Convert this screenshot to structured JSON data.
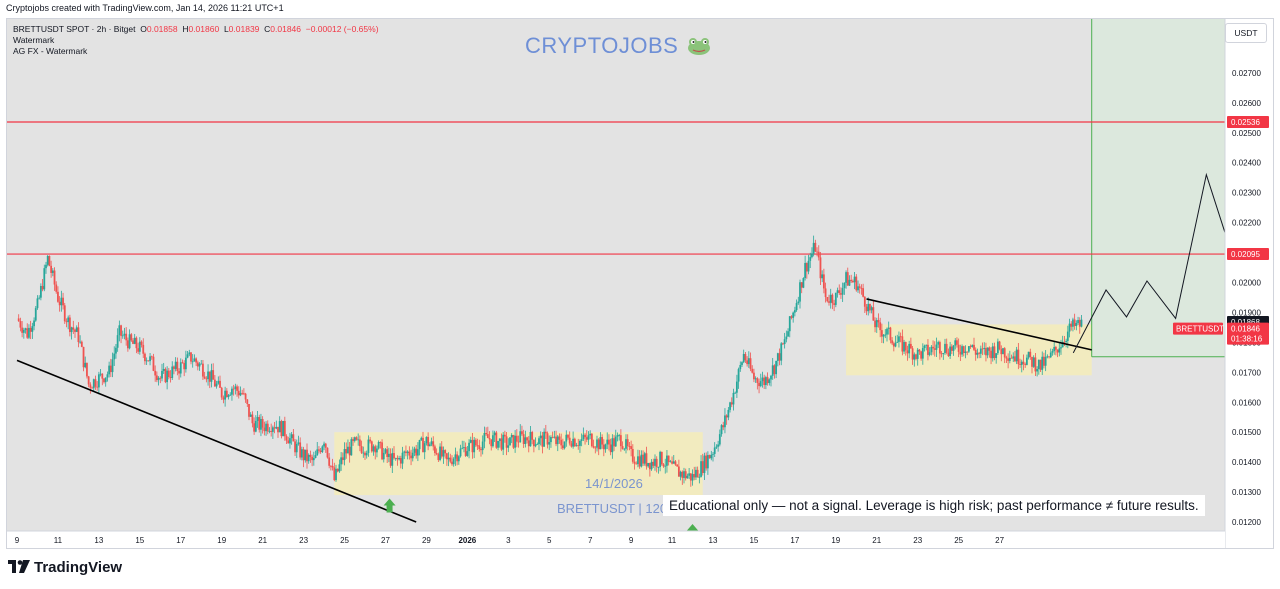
{
  "caption": "Cryptojobs created with TradingView.com, Jan 14, 2026 11:21 UTC+1",
  "legend": {
    "symbol": "BRETTUSDT SPOT · 2h · Bitget",
    "o_label": "O",
    "o_value": "0.01858",
    "h_label": "H",
    "h_value": "0.01860",
    "l_label": "L",
    "l_value": "0.01839",
    "c_label": "C",
    "c_value": "0.01846",
    "change": "−0.00012 (−0.65%)",
    "row2": "Watermark",
    "row3": "AG FX - Watermark"
  },
  "watermark": {
    "text": "CRYPTOJOBS",
    "icon": "frog-icon"
  },
  "currency_badge": "USDT",
  "annotations": {
    "date_note": "14/1/2026",
    "pair_note": "BRETTUSDT | 120",
    "educational": "Educational only — not a signal. Leverage is high risk; past performance ≠ future results."
  },
  "brand": {
    "text": "TradingView",
    "icon": "tradingview-logo-icon"
  },
  "colors": {
    "up": "#26a69a",
    "down": "#ef5350",
    "resistance": "#f23645",
    "zone": "#f5ecb8",
    "target_zone": "#d9eadb",
    "target_line": "#4caf50",
    "trendline": "#000000",
    "arrow": "#4caf50",
    "price_label": "#f23645"
  },
  "chart_data": {
    "type": "candlestick",
    "symbol": "BRETTUSDT",
    "timeframe": "2h",
    "y_ticks": [
      "0.01200",
      "0.01300",
      "0.01400",
      "0.01500",
      "0.01600",
      "0.01700",
      "0.01800",
      "0.01900",
      "0.02000",
      "0.02100",
      "0.02200",
      "0.02300",
      "0.02400",
      "0.02500",
      "0.02600",
      "0.02700"
    ],
    "x_ticks": [
      "9",
      "11",
      "13",
      "15",
      "17",
      "19",
      "21",
      "23",
      "25",
      "27",
      "29",
      "2026",
      "3",
      "5",
      "7",
      "9",
      "11",
      "13",
      "15",
      "17",
      "19",
      "21",
      "23",
      "25",
      "27"
    ],
    "ylim": [
      0.0117,
      0.0288
    ],
    "x_range_days": [
      0,
      59.5
    ],
    "horizontal_levels": [
      {
        "label": "0.02536",
        "value": 0.02536
      },
      {
        "label": "0.02095",
        "value": 0.02095
      }
    ],
    "current_price": {
      "name": "BRETTUSDT",
      "value": "0.01846",
      "countdown": "01:38:16"
    },
    "crosshair_price": "0.01868",
    "price_path": [
      [
        0,
        0.0188
      ],
      [
        0.5,
        0.0183
      ],
      [
        1,
        0.0192
      ],
      [
        1.5,
        0.0208
      ],
      [
        2,
        0.0195
      ],
      [
        2.5,
        0.0187
      ],
      [
        3,
        0.0182
      ],
      [
        3.5,
        0.0166
      ],
      [
        4,
        0.0168
      ],
      [
        4.5,
        0.017
      ],
      [
        5,
        0.0183
      ],
      [
        5.5,
        0.018
      ],
      [
        6,
        0.0178
      ],
      [
        6.5,
        0.0174
      ],
      [
        7,
        0.0168
      ],
      [
        7.5,
        0.017
      ],
      [
        8,
        0.0172
      ],
      [
        8.5,
        0.0175
      ],
      [
        9,
        0.0172
      ],
      [
        9.5,
        0.0168
      ],
      [
        10,
        0.0163
      ],
      [
        10.5,
        0.0165
      ],
      [
        11,
        0.0163
      ],
      [
        11.5,
        0.0153
      ],
      [
        12,
        0.0152
      ],
      [
        12.5,
        0.0153
      ],
      [
        13,
        0.0151
      ],
      [
        13.5,
        0.0146
      ],
      [
        14,
        0.0142
      ],
      [
        14.5,
        0.014
      ],
      [
        15,
        0.0148
      ],
      [
        15.5,
        0.0134
      ],
      [
        16,
        0.0143
      ],
      [
        16.5,
        0.0146
      ],
      [
        17,
        0.0145
      ],
      [
        17.5,
        0.0146
      ],
      [
        18,
        0.0142
      ],
      [
        18.5,
        0.014
      ],
      [
        19,
        0.0143
      ],
      [
        19.5,
        0.0144
      ],
      [
        20,
        0.0147
      ],
      [
        20.5,
        0.0144
      ],
      [
        21,
        0.014
      ],
      [
        21.5,
        0.0143
      ],
      [
        22,
        0.0145
      ],
      [
        22.5,
        0.0146
      ],
      [
        23,
        0.0148
      ],
      [
        23.5,
        0.0147
      ],
      [
        24,
        0.0146
      ],
      [
        24.5,
        0.0148
      ],
      [
        25,
        0.0148
      ],
      [
        25.5,
        0.0147
      ],
      [
        26,
        0.0148
      ],
      [
        26.5,
        0.0146
      ],
      [
        27,
        0.0148
      ],
      [
        27.5,
        0.0147
      ],
      [
        28,
        0.0148
      ],
      [
        28.5,
        0.0146
      ],
      [
        29,
        0.0146
      ],
      [
        29.5,
        0.0148
      ],
      [
        30,
        0.0142
      ],
      [
        30.5,
        0.0141
      ],
      [
        31,
        0.014
      ],
      [
        31.5,
        0.0141
      ],
      [
        32,
        0.0138
      ],
      [
        32.5,
        0.0136
      ],
      [
        33,
        0.0135
      ],
      [
        33.5,
        0.0139
      ],
      [
        34,
        0.0144
      ],
      [
        34.5,
        0.0152
      ],
      [
        35,
        0.0163
      ],
      [
        35.5,
        0.0176
      ],
      [
        36,
        0.0168
      ],
      [
        36.5,
        0.0167
      ],
      [
        37,
        0.0172
      ],
      [
        37.5,
        0.018
      ],
      [
        38,
        0.0192
      ],
      [
        38.5,
        0.0205
      ],
      [
        39,
        0.0212
      ],
      [
        39.5,
        0.0195
      ],
      [
        40,
        0.0195
      ],
      [
        40.5,
        0.0201
      ],
      [
        41,
        0.02
      ],
      [
        41.5,
        0.0193
      ],
      [
        42,
        0.0185
      ],
      [
        42.5,
        0.0183
      ],
      [
        43,
        0.018
      ],
      [
        43.5,
        0.0178
      ],
      [
        44,
        0.0176
      ],
      [
        44.5,
        0.0177
      ],
      [
        45,
        0.0179
      ],
      [
        45.5,
        0.0178
      ],
      [
        46,
        0.0178
      ],
      [
        46.5,
        0.0179
      ],
      [
        47,
        0.0176
      ],
      [
        47.5,
        0.0177
      ],
      [
        48,
        0.0178
      ],
      [
        48.5,
        0.0176
      ],
      [
        49,
        0.0175
      ],
      [
        49.5,
        0.0174
      ],
      [
        50,
        0.0172
      ],
      [
        50.5,
        0.0175
      ],
      [
        51,
        0.018
      ],
      [
        51.5,
        0.0185
      ],
      [
        52,
        0.0186
      ]
    ],
    "zones": [
      {
        "name": "range-zone-1",
        "x0": 15.5,
        "x1": 33.5,
        "y0": 0.0129,
        "y1": 0.015
      },
      {
        "name": "range-zone-2",
        "x0": 40.5,
        "x1": 52.5,
        "y0": 0.0169,
        "y1": 0.0186
      },
      {
        "name": "target-zone",
        "x0": 52.5,
        "x1": 59.5,
        "y0": 0.01752,
        "y1": 0.0288
      }
    ],
    "trendlines": [
      {
        "name": "descending-support-line",
        "points": [
          [
            0,
            0.0174
          ],
          [
            19.5,
            0.012
          ]
        ]
      },
      {
        "name": "descending-resistance-line",
        "points": [
          [
            41.5,
            0.01945
          ],
          [
            52.5,
            0.01775
          ]
        ]
      }
    ],
    "projection_path": [
      [
        51.6,
        0.01765
      ],
      [
        53.2,
        0.01975
      ],
      [
        54.2,
        0.01885
      ],
      [
        55.2,
        0.02005
      ],
      [
        56.6,
        0.0188
      ],
      [
        58.1,
        0.0236
      ],
      [
        59.3,
        0.02105
      ],
      [
        59.8,
        0.02175
      ],
      [
        61.0,
        0.02045
      ],
      [
        62.1,
        0.0216
      ],
      [
        63.2,
        0.0208
      ],
      [
        63.2,
        0.02536
      ]
    ],
    "signal_arrows": [
      {
        "name": "buy-arrow-1",
        "x": 18.2,
        "y": 0.01255
      },
      {
        "name": "buy-arrow-2",
        "x": 33.0,
        "y": 0.0117
      }
    ]
  }
}
